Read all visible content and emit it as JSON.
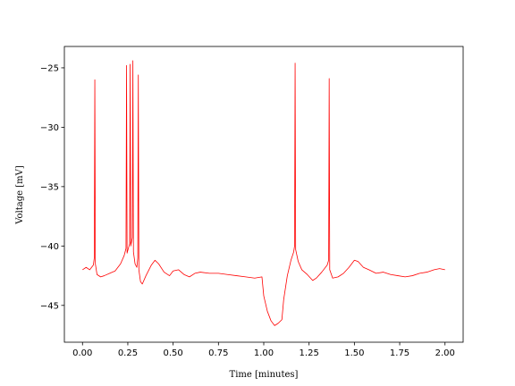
{
  "chart_data": {
    "type": "line",
    "xlabel": "Time [minutes]",
    "ylabel": "Voltage [mV]",
    "xlim": [
      -0.1,
      2.1
    ],
    "ylim": [
      -48.1,
      -23.2
    ],
    "xticks": [
      {
        "value": 0,
        "label": "0.00"
      },
      0.25,
      {
        "value": 0.5,
        "label": "0.50"
      },
      0.75,
      {
        "value": 1,
        "label": "1.00"
      },
      1.25,
      {
        "value": 1.5,
        "label": "1.50"
      },
      1.75,
      {
        "value": 2,
        "label": "2.00"
      }
    ],
    "yticks": [
      {
        "value": -45,
        "label": "−45"
      },
      {
        "value": -40,
        "label": "−40"
      },
      {
        "value": -35,
        "label": "−35"
      },
      {
        "value": -30,
        "label": "−30"
      },
      {
        "value": -25,
        "label": "−25"
      }
    ],
    "x": [
      0,
      0.02,
      0.04,
      0.06,
      0.065,
      0.068,
      0.071,
      0.08,
      0.1,
      0.12,
      0.15,
      0.18,
      0.21,
      0.23,
      0.24,
      0.243,
      0.246,
      0.26,
      0.263,
      0.266,
      0.275,
      0.278,
      0.281,
      0.29,
      0.3,
      0.305,
      0.308,
      0.311,
      0.32,
      0.33,
      0.35,
      0.38,
      0.4,
      0.42,
      0.45,
      0.48,
      0.5,
      0.53,
      0.56,
      0.59,
      0.62,
      0.65,
      0.7,
      0.75,
      0.8,
      0.85,
      0.9,
      0.95,
      0.99,
      1,
      1.02,
      1.04,
      1.06,
      1.08,
      1.1,
      1.11,
      1.13,
      1.15,
      1.165,
      1.17,
      1.173,
      1.176,
      1.19,
      1.21,
      1.24,
      1.27,
      1.29,
      1.32,
      1.35,
      1.358,
      1.361,
      1.364,
      1.38,
      1.41,
      1.44,
      1.47,
      1.5,
      1.52,
      1.55,
      1.58,
      1.62,
      1.66,
      1.7,
      1.74,
      1.78,
      1.82,
      1.86,
      1.9,
      1.94,
      1.97,
      2
    ],
    "series": [
      {
        "color": "#ff0000",
        "values": [
          -42.0,
          -41.8,
          -42.0,
          -41.6,
          -41.0,
          -26.0,
          -41.5,
          -42.4,
          -42.6,
          -42.5,
          -42.3,
          -42.1,
          -41.5,
          -40.8,
          -40.2,
          -24.8,
          -40.6,
          -39.8,
          -24.7,
          -40.0,
          -39.3,
          -24.4,
          -40.5,
          -41.5,
          -41.8,
          -41.0,
          -25.6,
          -42.0,
          -43.0,
          -43.2,
          -42.5,
          -41.6,
          -41.2,
          -41.5,
          -42.2,
          -42.5,
          -42.1,
          -42.0,
          -42.4,
          -42.6,
          -42.3,
          -42.2,
          -42.3,
          -42.3,
          -42.4,
          -42.5,
          -42.6,
          -42.7,
          -42.6,
          -44.2,
          -45.5,
          -46.3,
          -46.7,
          -46.5,
          -46.2,
          -44.5,
          -42.5,
          -41.2,
          -40.5,
          -40.0,
          -24.6,
          -40.3,
          -41.3,
          -42.0,
          -42.4,
          -42.9,
          -42.7,
          -42.2,
          -41.6,
          -41.2,
          -25.9,
          -42.0,
          -42.7,
          -42.6,
          -42.3,
          -41.8,
          -41.2,
          -41.3,
          -41.8,
          -42.0,
          -42.3,
          -42.2,
          -42.4,
          -42.5,
          -42.6,
          -42.5,
          -42.3,
          -42.2,
          -42.0,
          -41.9,
          -42.0
        ]
      }
    ]
  }
}
